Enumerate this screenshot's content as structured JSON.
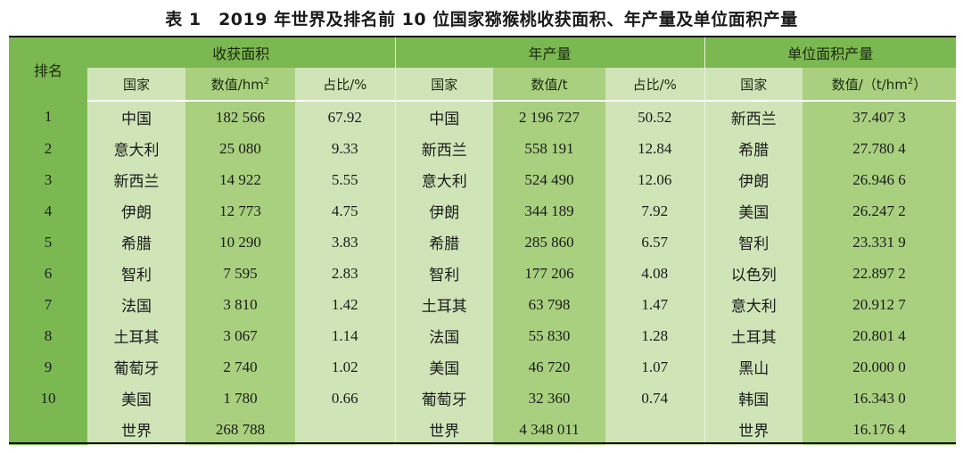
{
  "title": "表 1　2019 年世界及排名前 10 位国家猕猴桃收获面积、年产量及单位面积产量",
  "header": {
    "rank": "排名",
    "groups": [
      "收获面积",
      "年产量",
      "单位面积产量"
    ],
    "sub": {
      "area_country": "国家",
      "area_value": "数值/hm",
      "area_value_sup": "2",
      "area_share": "占比/%",
      "prod_country": "国家",
      "prod_value": "数值/t",
      "prod_share": "占比/%",
      "yield_country": "国家",
      "yield_value": "数值/（t/hm",
      "yield_value_sup": "2",
      "yield_value_end": "）"
    }
  },
  "rows": [
    {
      "rank": "1",
      "area_country": "中国",
      "area_value": "182 566",
      "area_share": "67.92",
      "prod_country": "中国",
      "prod_value": "2 196 727",
      "prod_share": "50.52",
      "yield_country": "新西兰",
      "yield_value": "37.407 3"
    },
    {
      "rank": "2",
      "area_country": "意大利",
      "area_value": "25 080",
      "area_share": "9.33",
      "prod_country": "新西兰",
      "prod_value": "558 191",
      "prod_share": "12.84",
      "yield_country": "希腊",
      "yield_value": "27.780 4"
    },
    {
      "rank": "3",
      "area_country": "新西兰",
      "area_value": "14 922",
      "area_share": "5.55",
      "prod_country": "意大利",
      "prod_value": "524 490",
      "prod_share": "12.06",
      "yield_country": "伊朗",
      "yield_value": "26.946 6"
    },
    {
      "rank": "4",
      "area_country": "伊朗",
      "area_value": "12 773",
      "area_share": "4.75",
      "prod_country": "伊朗",
      "prod_value": "344 189",
      "prod_share": "7.92",
      "yield_country": "美国",
      "yield_value": "26.247 2"
    },
    {
      "rank": "5",
      "area_country": "希腊",
      "area_value": "10 290",
      "area_share": "3.83",
      "prod_country": "希腊",
      "prod_value": "285 860",
      "prod_share": "6.57",
      "yield_country": "智利",
      "yield_value": "23.331 9"
    },
    {
      "rank": "6",
      "area_country": "智利",
      "area_value": "7 595",
      "area_share": "2.83",
      "prod_country": "智利",
      "prod_value": "177 206",
      "prod_share": "4.08",
      "yield_country": "以色列",
      "yield_value": "22.897 2"
    },
    {
      "rank": "7",
      "area_country": "法国",
      "area_value": "3 810",
      "area_share": "1.42",
      "prod_country": "土耳其",
      "prod_value": "63 798",
      "prod_share": "1.47",
      "yield_country": "意大利",
      "yield_value": "20.912 7"
    },
    {
      "rank": "8",
      "area_country": "土耳其",
      "area_value": "3 067",
      "area_share": "1.14",
      "prod_country": "法国",
      "prod_value": "55 830",
      "prod_share": "1.28",
      "yield_country": "土耳其",
      "yield_value": "20.801 4"
    },
    {
      "rank": "9",
      "area_country": "葡萄牙",
      "area_value": "2 740",
      "area_share": "1.02",
      "prod_country": "美国",
      "prod_value": "46 720",
      "prod_share": "1.07",
      "yield_country": "黑山",
      "yield_value": "20.000 0"
    },
    {
      "rank": "10",
      "area_country": "美国",
      "area_value": "1 780",
      "area_share": "0.66",
      "prod_country": "葡萄牙",
      "prod_value": "32 360",
      "prod_share": "0.74",
      "yield_country": "韩国",
      "yield_value": "16.343 0"
    },
    {
      "rank": "",
      "area_country": "世界",
      "area_value": "268 788",
      "area_share": "",
      "prod_country": "世界",
      "prod_value": "4 348 011",
      "prod_share": "",
      "yield_country": "世界",
      "yield_value": "16.176 4"
    }
  ],
  "colors": {
    "header": "#7cb851",
    "light": "#cfe5b8",
    "dark": "#a9d07f"
  }
}
